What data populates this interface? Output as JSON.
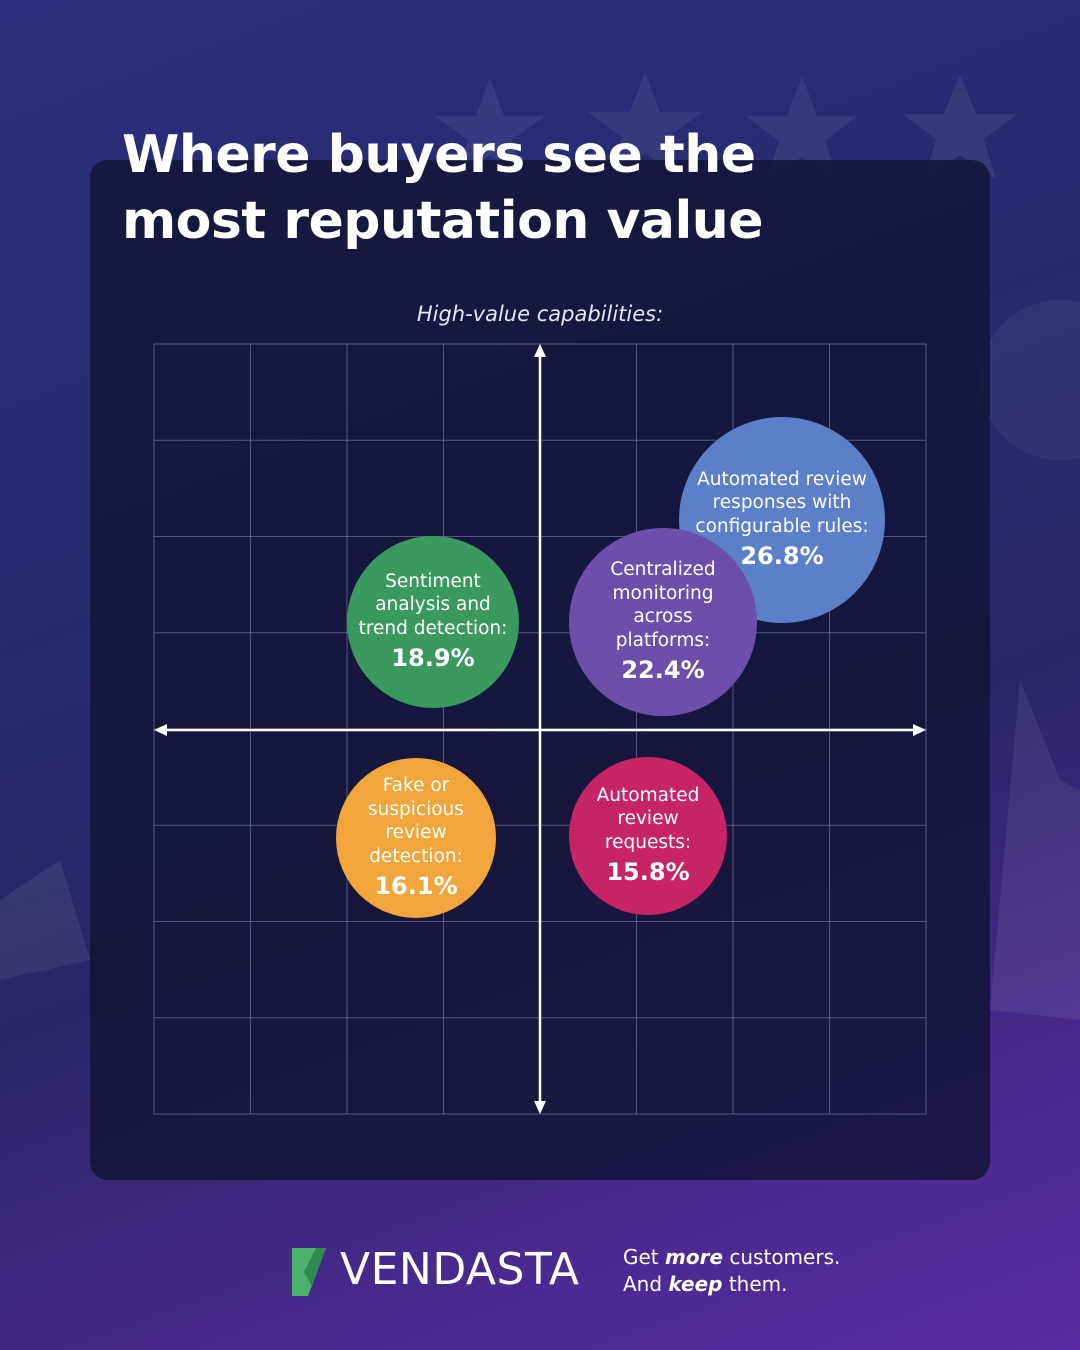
{
  "title": "Where buyers see the most reputation value",
  "axis_caption": "High-value capabilities:",
  "colors": {
    "blue": "#5b7fc9",
    "purple": "#6b4fab",
    "green": "#3a9a5e",
    "orange": "#f2a53a",
    "magenta": "#c72466"
  },
  "chart_data": {
    "type": "scatter",
    "title": "Where buyers see the most reputation value",
    "subtitle": "High-value capabilities:",
    "grid": true,
    "points": [
      {
        "label": "Automated review responses with configurable rules:",
        "value": "26.8%",
        "percent": 26.8,
        "quadrant": "upper-right",
        "color": "blue"
      },
      {
        "label": "Centralized monitoring across platforms:",
        "value": "22.4%",
        "percent": 22.4,
        "quadrant": "upper-right",
        "color": "purple"
      },
      {
        "label": "Sentiment analysis and trend detection:",
        "value": "18.9%",
        "percent": 18.9,
        "quadrant": "upper-left",
        "color": "green"
      },
      {
        "label": "Fake or suspicious review detection:",
        "value": "16.1%",
        "percent": 16.1,
        "quadrant": "lower-left",
        "color": "orange"
      },
      {
        "label": "Automated review requests:",
        "value": "15.8%",
        "percent": 15.8,
        "quadrant": "lower-right",
        "color": "magenta"
      }
    ]
  },
  "footer": {
    "logo": "VENDASTA",
    "tagline_line1_pre": "Get ",
    "tagline_line1_em": "more",
    "tagline_line1_post": " customers.",
    "tagline_line2_pre": "And ",
    "tagline_line2_em": "keep",
    "tagline_line2_post": " them."
  }
}
